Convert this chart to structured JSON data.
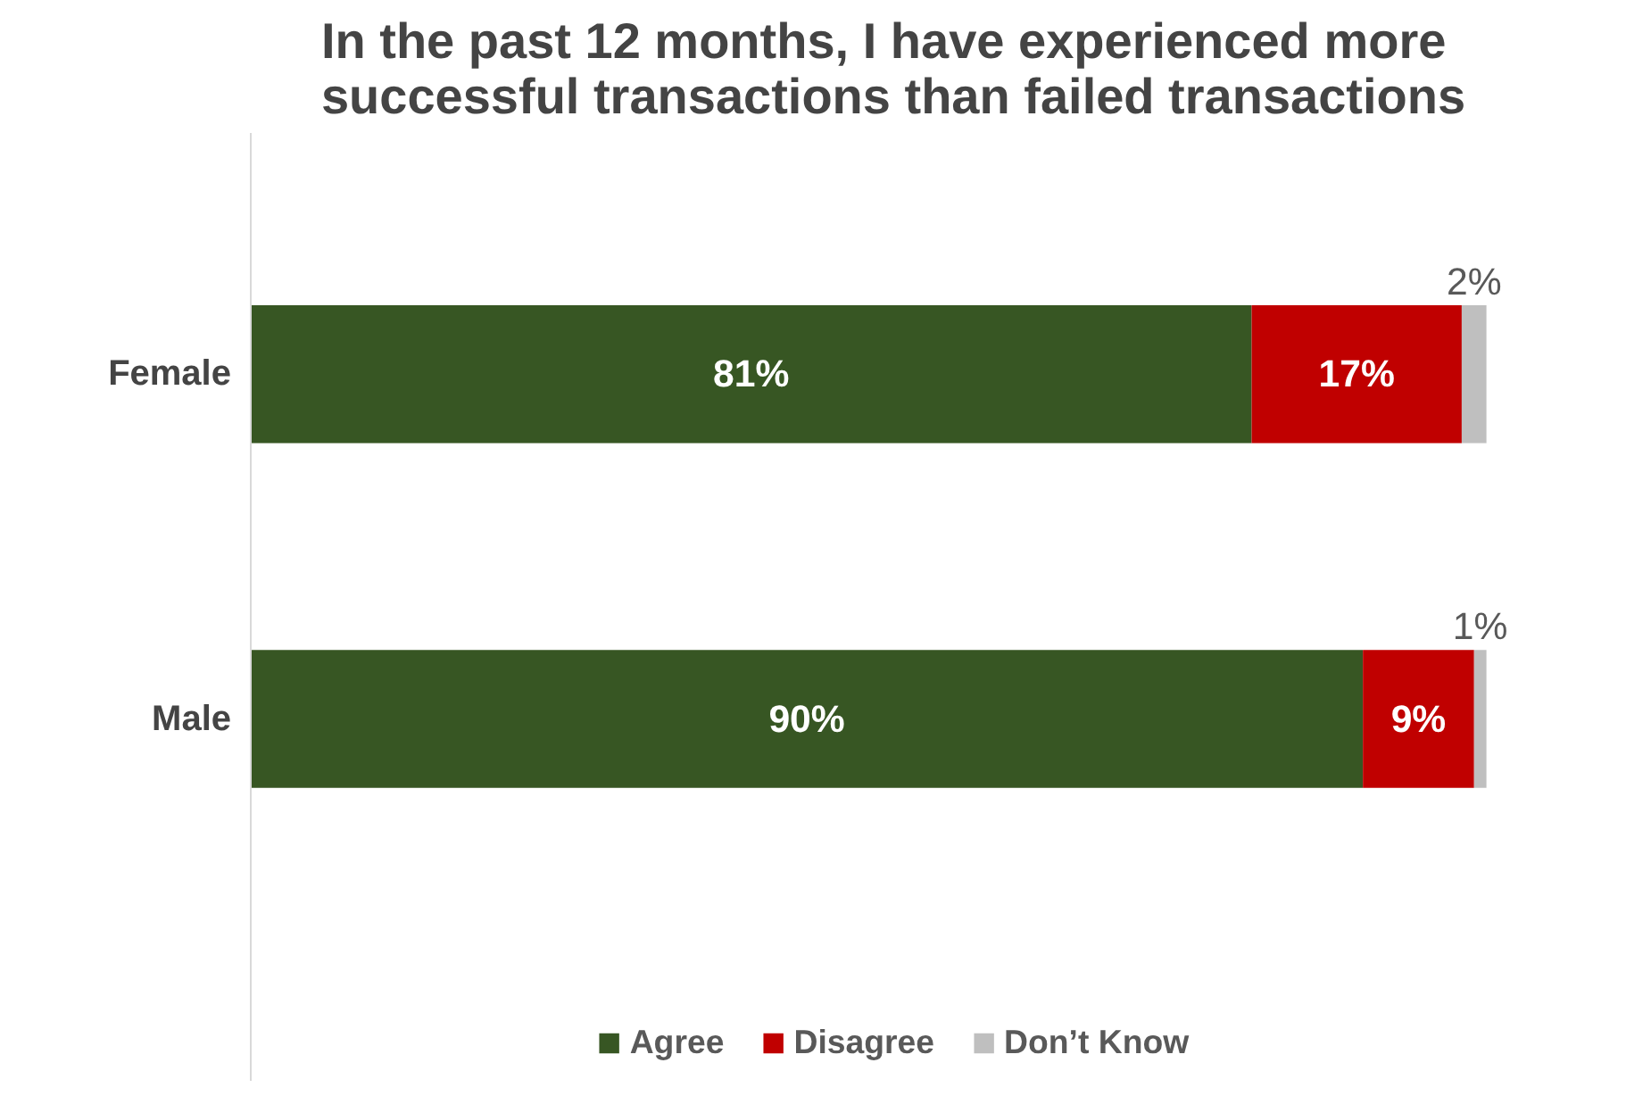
{
  "chart_data": {
    "type": "bar",
    "orientation": "horizontal",
    "stacked": true,
    "title": "In the past 12 months, I have experienced more successful transactions than failed transactions",
    "categories": [
      "Female",
      "Male"
    ],
    "series": [
      {
        "name": "Agree",
        "color": "#375623",
        "values": [
          81,
          90
        ],
        "value_labels": [
          "81%",
          "90%"
        ]
      },
      {
        "name": "Disagree",
        "color": "#c00000",
        "values": [
          17,
          9
        ],
        "value_labels": [
          "17%",
          "9%"
        ]
      },
      {
        "name": "Don’t Know",
        "color": "#bfbfbf",
        "values": [
          2,
          1
        ],
        "value_labels": [
          "2%",
          "1%"
        ]
      }
    ],
    "legend": "bottom",
    "grid": false,
    "tick_labels": "y"
  }
}
